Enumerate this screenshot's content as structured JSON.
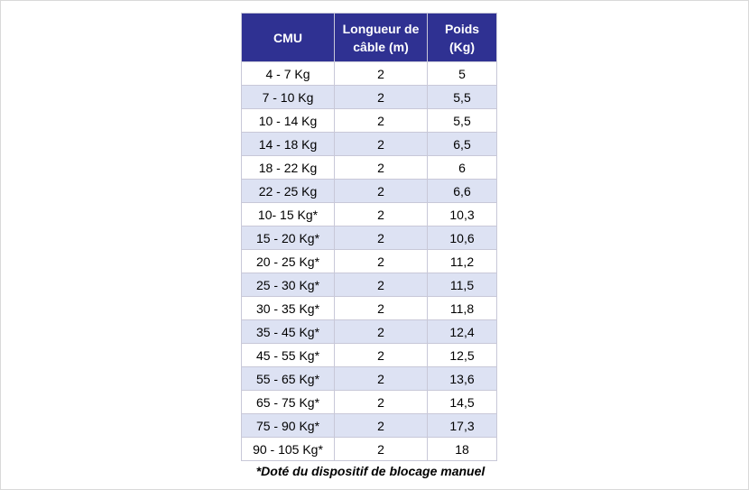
{
  "table": {
    "headers": [
      "CMU",
      "Longueur de câble (m)",
      "Poids (Kg)"
    ],
    "rows": [
      [
        "4 - 7 Kg",
        "2",
        "5"
      ],
      [
        "7 - 10 Kg",
        "2",
        "5,5"
      ],
      [
        "10 - 14 Kg",
        "2",
        "5,5"
      ],
      [
        "14 - 18 Kg",
        "2",
        "6,5"
      ],
      [
        "18 - 22 Kg",
        "2",
        "6"
      ],
      [
        "22 - 25 Kg",
        "2",
        "6,6"
      ],
      [
        "10- 15 Kg*",
        "2",
        "10,3"
      ],
      [
        "15 - 20 Kg*",
        "2",
        "10,6"
      ],
      [
        "20 - 25 Kg*",
        "2",
        "11,2"
      ],
      [
        "25 - 30 Kg*",
        "2",
        "11,5"
      ],
      [
        "30 - 35 Kg*",
        "2",
        "11,8"
      ],
      [
        "35 - 45 Kg*",
        "2",
        "12,4"
      ],
      [
        "45 - 55 Kg*",
        "2",
        "12,5"
      ],
      [
        "55 - 65 Kg*",
        "2",
        "13,6"
      ],
      [
        "65 - 75 Kg*",
        "2",
        "14,5"
      ],
      [
        "75 - 90 Kg*",
        "2",
        "17,3"
      ],
      [
        "90 - 105 Kg*",
        "2",
        "18"
      ]
    ]
  },
  "footnote": "*Doté du dispositif de blocage manuel",
  "colors": {
    "header_bg": "#2f3192",
    "header_text": "#ffffff",
    "row_alt_bg": "#dde2f3",
    "border": "#c8c8d8"
  }
}
